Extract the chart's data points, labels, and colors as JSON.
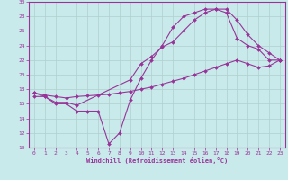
{
  "xlabel": "Windchill (Refroidissement éolien,°C)",
  "background_color": "#c8eaea",
  "grid_color": "#b0d0d0",
  "line_color": "#993399",
  "xlim": [
    -0.5,
    23.5
  ],
  "ylim": [
    10,
    30
  ],
  "xticks": [
    0,
    1,
    2,
    3,
    4,
    5,
    6,
    7,
    8,
    9,
    10,
    11,
    12,
    13,
    14,
    15,
    16,
    17,
    18,
    19,
    20,
    21,
    22,
    23
  ],
  "yticks": [
    10,
    12,
    14,
    16,
    18,
    20,
    22,
    24,
    26,
    28,
    30
  ],
  "curve1_x": [
    0,
    1,
    2,
    3,
    4,
    5,
    6,
    7,
    8,
    9,
    10,
    11,
    12,
    13,
    14,
    15,
    16,
    17,
    18,
    19,
    20,
    21,
    22,
    23
  ],
  "curve1_y": [
    17,
    17,
    16,
    16,
    15,
    15,
    15,
    10.5,
    12,
    16.5,
    19.5,
    22,
    24,
    26.5,
    28,
    28.5,
    29,
    29,
    28.5,
    25,
    24,
    23.5,
    22,
    22
  ],
  "curve2_x": [
    0,
    1,
    2,
    3,
    4,
    9,
    10,
    11,
    12,
    13,
    14,
    15,
    16,
    17,
    18,
    19,
    20,
    21,
    22,
    23
  ],
  "curve2_y": [
    17.5,
    17,
    16.2,
    16.2,
    15.8,
    19.3,
    21.5,
    22.5,
    23.8,
    24.5,
    26,
    27.5,
    28.5,
    29,
    29,
    27.5,
    25.5,
    24,
    23,
    22
  ],
  "curve3_x": [
    0,
    1,
    2,
    3,
    4,
    5,
    6,
    7,
    8,
    9,
    10,
    11,
    12,
    13,
    14,
    15,
    16,
    17,
    18,
    19,
    20,
    21,
    22,
    23
  ],
  "curve3_y": [
    17.5,
    17.2,
    17.0,
    16.8,
    17.0,
    17.1,
    17.2,
    17.3,
    17.5,
    17.7,
    18.0,
    18.3,
    18.7,
    19.1,
    19.5,
    20.0,
    20.5,
    21.0,
    21.5,
    22.0,
    21.5,
    21.0,
    21.2,
    22
  ]
}
